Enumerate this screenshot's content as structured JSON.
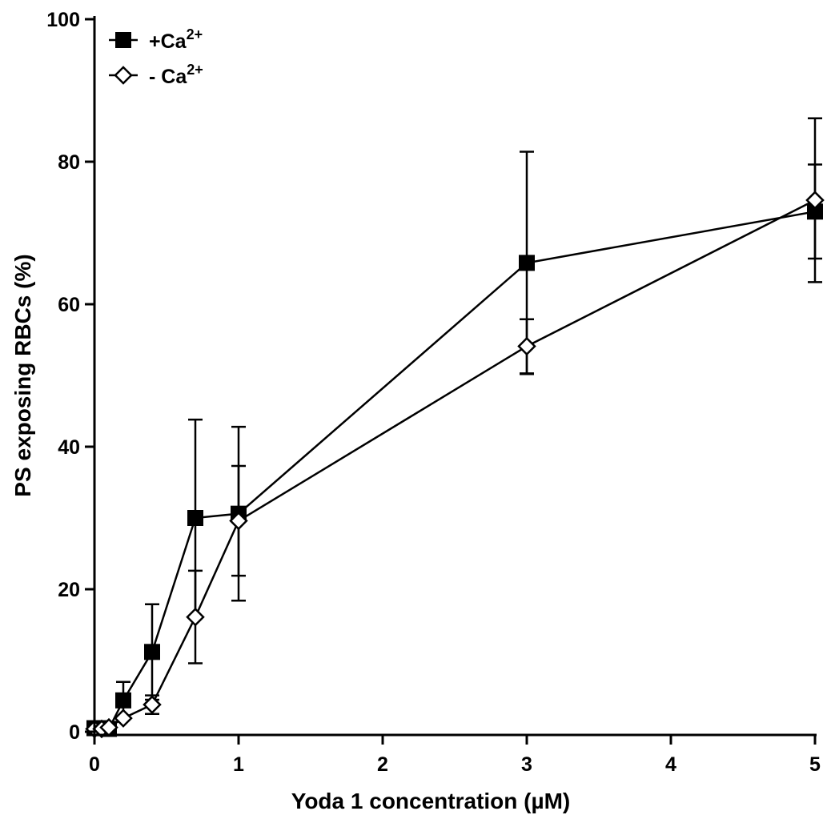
{
  "chart_data": {
    "type": "line",
    "title": "",
    "xlabel": "Yoda 1 concentration (µM)",
    "ylabel": "PS exposing RBCs (%)",
    "xlim": [
      0,
      5
    ],
    "ylim": [
      0,
      100
    ],
    "xticks": [
      0,
      1,
      2,
      3,
      4,
      5
    ],
    "yticks": [
      0,
      20,
      40,
      60,
      80,
      100
    ],
    "xtick_labels": [
      "0",
      "1",
      "2",
      "3",
      "4",
      "5"
    ],
    "ytick_labels": [
      "0",
      "20",
      "40",
      "60",
      "80",
      "100"
    ],
    "grid": false,
    "legend_position": "top-left",
    "series": [
      {
        "name": "+Ca",
        "name_superscript": "2+",
        "marker": "filled-square",
        "color": "#000000",
        "x": [
          0,
          0.05,
          0.1,
          0.2,
          0.4,
          0.7,
          1,
          3,
          5
        ],
        "y": [
          0.5,
          0.5,
          0.4,
          4.4,
          11.2,
          30.0,
          30.6,
          65.8,
          73.0
        ],
        "err": [
          0.3,
          0.3,
          0.3,
          2.6,
          6.7,
          13.8,
          12.2,
          15.6,
          6.6
        ]
      },
      {
        "name": "- Ca",
        "name_superscript": "2+",
        "marker": "open-diamond",
        "color": "#000000",
        "x": [
          0,
          0.05,
          0.1,
          0.2,
          0.4,
          0.7,
          1,
          3,
          5
        ],
        "y": [
          0.4,
          0.4,
          0.6,
          1.9,
          3.8,
          16.1,
          29.6,
          54.1,
          74.6
        ],
        "err": [
          0.2,
          0.2,
          0.2,
          0.4,
          1.3,
          6.5,
          7.7,
          3.8,
          11.5
        ]
      }
    ]
  }
}
